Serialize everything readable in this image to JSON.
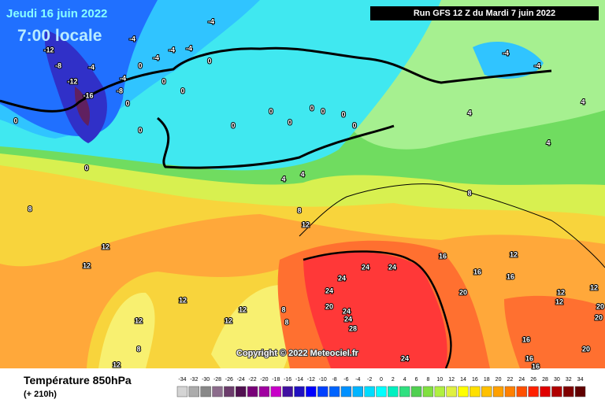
{
  "header": {
    "valid_date": "Jeudi 16 juin 2022",
    "local_time": "7:00 locale",
    "run": "Run GFS 12 Z du Mardi 7 juin 2022"
  },
  "footer": {
    "parameter": "Température 850hPa",
    "lead_time": "(+ 210h)",
    "copyright": "Copyright © 2022 Meteociel.fr"
  },
  "scale": {
    "values": [
      -34,
      -32,
      -30,
      -28,
      -26,
      -24,
      -22,
      -20,
      -18,
      -16,
      -14,
      -12,
      -10,
      -8,
      -6,
      -4,
      -2,
      0,
      2,
      4,
      6,
      8,
      10,
      12,
      14,
      16,
      18,
      20,
      22,
      24,
      26,
      28,
      30,
      32,
      34
    ],
    "colors": [
      "#d4d4d4",
      "#acacac",
      "#888888",
      "#8c6c8c",
      "#6c3c6c",
      "#501050",
      "#780078",
      "#a000a0",
      "#c800c8",
      "#4010a0",
      "#2010c0",
      "#0000ff",
      "#0040ff",
      "#0064ff",
      "#0090ff",
      "#00b4ff",
      "#00dcff",
      "#00ffff",
      "#00f0c0",
      "#30e080",
      "#50d050",
      "#80e040",
      "#b0f040",
      "#e0f040",
      "#ffff00",
      "#ffe000",
      "#ffc000",
      "#ffa000",
      "#ff8000",
      "#ff5000",
      "#ff2000",
      "#e00000",
      "#b00000",
      "#800000",
      "#600000"
    ]
  },
  "contour_labels": [
    -4,
    -4,
    -4,
    -4,
    -4,
    -4,
    -4,
    -12,
    -8,
    -12,
    -16,
    -8,
    0,
    0,
    0,
    0,
    0,
    0,
    0,
    0,
    0,
    0,
    0,
    0,
    0,
    0,
    0,
    -4,
    -4,
    4,
    4,
    4,
    4,
    4,
    8,
    8,
    8,
    12,
    12,
    12,
    12,
    12,
    12,
    12,
    12,
    12,
    12,
    12,
    12,
    16,
    16,
    16,
    16,
    16,
    16,
    8,
    8,
    8,
    20,
    20,
    20,
    20,
    20,
    24,
    24,
    24,
    24,
    24,
    24,
    24,
    28
  ]
}
